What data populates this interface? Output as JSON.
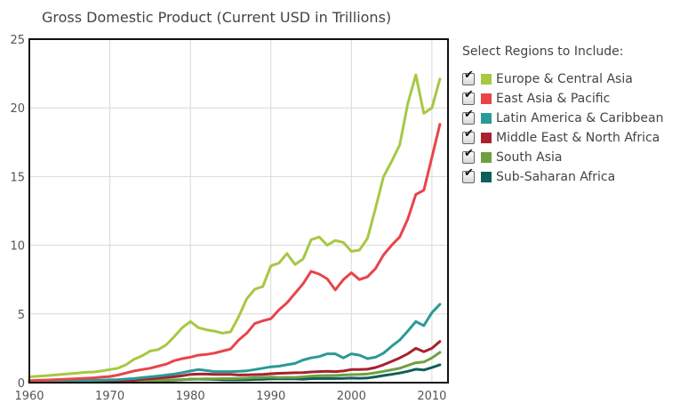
{
  "chart_data": {
    "type": "line",
    "title": "Gross Domestic Product (Current USD in Trillions)",
    "xlim": [
      1960,
      2012
    ],
    "ylim": [
      0,
      25
    ],
    "x_ticks": [
      1960,
      1970,
      1980,
      1990,
      2000,
      2010
    ],
    "y_ticks": [
      0,
      5,
      10,
      15,
      20,
      25
    ],
    "grid": true,
    "legend_placement": "right",
    "x": [
      1960,
      1961,
      1962,
      1963,
      1964,
      1965,
      1966,
      1967,
      1968,
      1969,
      1970,
      1971,
      1972,
      1973,
      1974,
      1975,
      1976,
      1977,
      1978,
      1979,
      1980,
      1981,
      1982,
      1983,
      1984,
      1985,
      1986,
      1987,
      1988,
      1989,
      1990,
      1991,
      1992,
      1993,
      1994,
      1995,
      1996,
      1997,
      1998,
      1999,
      2000,
      2001,
      2002,
      2003,
      2004,
      2005,
      2006,
      2007,
      2008,
      2009,
      2010,
      2011
    ],
    "series": [
      {
        "name": "Europe & Central Asia",
        "color": "#a7c843",
        "values": [
          0.42,
          0.46,
          0.5,
          0.55,
          0.6,
          0.65,
          0.7,
          0.75,
          0.78,
          0.85,
          0.95,
          1.05,
          1.3,
          1.7,
          1.95,
          2.3,
          2.4,
          2.75,
          3.35,
          4.0,
          4.45,
          4.0,
          3.85,
          3.75,
          3.6,
          3.7,
          4.8,
          6.1,
          6.8,
          7.0,
          8.5,
          8.7,
          9.4,
          8.6,
          9.0,
          10.4,
          10.6,
          10.0,
          10.35,
          10.2,
          9.55,
          9.65,
          10.5,
          12.7,
          15.0,
          16.1,
          17.3,
          20.3,
          22.4,
          19.6,
          20.0,
          22.1
        ]
      },
      {
        "name": "East Asia & Pacific",
        "color": "#e8444a",
        "values": [
          0.15,
          0.17,
          0.19,
          0.21,
          0.23,
          0.26,
          0.29,
          0.32,
          0.35,
          0.4,
          0.45,
          0.55,
          0.7,
          0.85,
          0.95,
          1.05,
          1.2,
          1.35,
          1.6,
          1.75,
          1.85,
          2.0,
          2.05,
          2.15,
          2.3,
          2.45,
          3.1,
          3.6,
          4.3,
          4.5,
          4.65,
          5.3,
          5.8,
          6.5,
          7.2,
          8.1,
          7.9,
          7.55,
          6.75,
          7.5,
          8.0,
          7.5,
          7.7,
          8.3,
          9.3,
          10.0,
          10.6,
          11.9,
          13.7,
          14.0,
          16.4,
          18.8
        ]
      },
      {
        "name": "Latin America & Caribbean",
        "color": "#2a9a97",
        "values": [
          0.08,
          0.09,
          0.1,
          0.11,
          0.12,
          0.13,
          0.14,
          0.15,
          0.17,
          0.19,
          0.2,
          0.22,
          0.26,
          0.3,
          0.36,
          0.42,
          0.48,
          0.55,
          0.62,
          0.72,
          0.85,
          0.95,
          0.88,
          0.8,
          0.8,
          0.8,
          0.82,
          0.86,
          0.95,
          1.05,
          1.15,
          1.2,
          1.3,
          1.4,
          1.65,
          1.8,
          1.9,
          2.1,
          2.1,
          1.8,
          2.1,
          2.0,
          1.75,
          1.85,
          2.15,
          2.65,
          3.1,
          3.75,
          4.45,
          4.15,
          5.1,
          5.7
        ]
      },
      {
        "name": "Middle East & North Africa",
        "color": "#a6222e",
        "values": [
          0.03,
          0.03,
          0.04,
          0.04,
          0.05,
          0.05,
          0.06,
          0.06,
          0.07,
          0.08,
          0.09,
          0.1,
          0.12,
          0.16,
          0.24,
          0.28,
          0.33,
          0.38,
          0.43,
          0.5,
          0.6,
          0.62,
          0.62,
          0.6,
          0.6,
          0.6,
          0.56,
          0.57,
          0.58,
          0.6,
          0.65,
          0.68,
          0.7,
          0.72,
          0.73,
          0.78,
          0.8,
          0.82,
          0.8,
          0.85,
          0.95,
          0.95,
          0.98,
          1.1,
          1.3,
          1.55,
          1.8,
          2.1,
          2.5,
          2.25,
          2.5,
          3.0
        ]
      },
      {
        "name": "South Asia",
        "color": "#6ea041",
        "values": [
          0.05,
          0.05,
          0.06,
          0.06,
          0.07,
          0.08,
          0.08,
          0.08,
          0.09,
          0.1,
          0.1,
          0.11,
          0.11,
          0.13,
          0.15,
          0.16,
          0.16,
          0.18,
          0.2,
          0.22,
          0.24,
          0.26,
          0.27,
          0.28,
          0.29,
          0.29,
          0.31,
          0.33,
          0.36,
          0.38,
          0.4,
          0.37,
          0.38,
          0.38,
          0.42,
          0.47,
          0.5,
          0.52,
          0.52,
          0.56,
          0.58,
          0.6,
          0.63,
          0.72,
          0.82,
          0.93,
          1.05,
          1.25,
          1.45,
          1.5,
          1.8,
          2.2
        ]
      },
      {
        "name": "Sub-Saharan Africa",
        "color": "#115e58",
        "values": [
          0.03,
          0.03,
          0.03,
          0.04,
          0.04,
          0.04,
          0.05,
          0.05,
          0.05,
          0.06,
          0.07,
          0.07,
          0.08,
          0.1,
          0.12,
          0.13,
          0.14,
          0.16,
          0.18,
          0.21,
          0.25,
          0.26,
          0.25,
          0.23,
          0.21,
          0.2,
          0.2,
          0.21,
          0.23,
          0.24,
          0.27,
          0.28,
          0.28,
          0.27,
          0.25,
          0.29,
          0.3,
          0.31,
          0.3,
          0.31,
          0.33,
          0.32,
          0.34,
          0.42,
          0.52,
          0.6,
          0.7,
          0.82,
          0.98,
          0.92,
          1.1,
          1.3
        ]
      }
    ]
  },
  "legend": {
    "title": "Select Regions to Include:",
    "items": [
      {
        "label": "Europe & Central Asia",
        "checked": true,
        "check_glyph": "✔"
      },
      {
        "label": "East Asia & Pacific",
        "checked": true,
        "check_glyph": "✔"
      },
      {
        "label": "Latin America & Caribbean",
        "checked": true,
        "check_glyph": "✔"
      },
      {
        "label": "Middle East & North Africa",
        "checked": true,
        "check_glyph": "✔"
      },
      {
        "label": "South Asia",
        "checked": true,
        "check_glyph": "✔"
      },
      {
        "label": "Sub-Saharan Africa",
        "checked": true,
        "check_glyph": "✔"
      }
    ]
  },
  "colors": {
    "frame": "#111111",
    "grid": "#d9d9d9",
    "axis_text": "#555555"
  }
}
